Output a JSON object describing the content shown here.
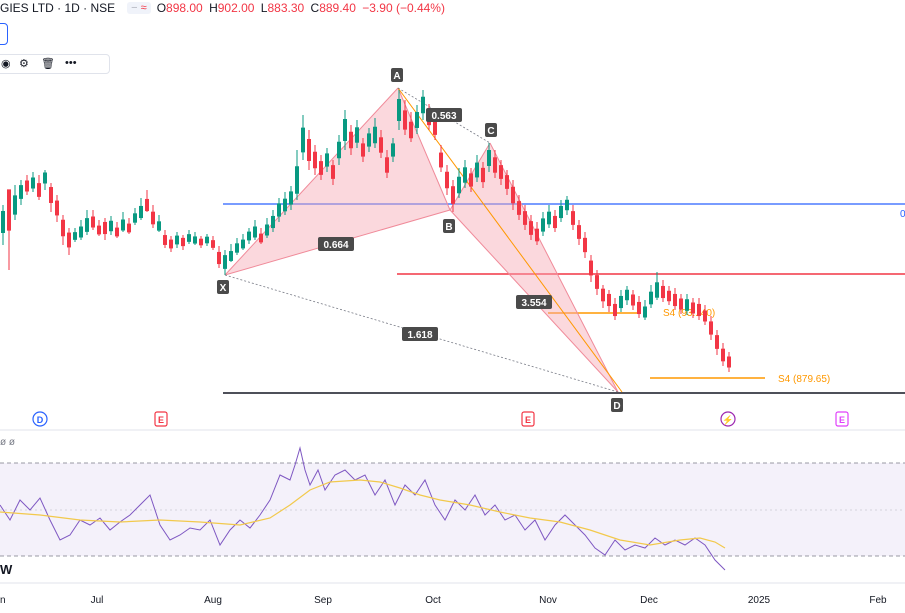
{
  "header": {
    "symbol": "GIES LTD · 1D · NSE",
    "chip_minus": "−",
    "chip_eq": "≈",
    "ohlc": [
      {
        "k": "O",
        "v": "898.00"
      },
      {
        "k": "H",
        "v": "902.00"
      },
      {
        "k": "L",
        "v": "883.30"
      },
      {
        "k": "C",
        "v": "889.40"
      },
      {
        "k": "",
        "v": "−3.90 (−0.44%)"
      }
    ]
  },
  "toolbar": {
    "eye": "◉",
    "settings": "⚙",
    "trash": "🗑",
    "more": "•••"
  },
  "indicator_header": "ø ø",
  "w_label": "W",
  "colors": {
    "up": "#089981",
    "down": "#f23645",
    "blue_line": "#2962ff",
    "red_line": "#f23645",
    "pattern_fill": "#f7a8b3",
    "rsi": "#7e57c2",
    "rsi_ma": "#f2c94c",
    "rsi_band": "#ede7f6",
    "orange": "#ff9800"
  },
  "chart_data": {
    "type": "candlestick",
    "x_ticks": [
      "n",
      "Jul",
      "Aug",
      "Sep",
      "Oct",
      "Nov",
      "Dec",
      "2025",
      "Feb"
    ],
    "pattern_points": [
      {
        "label": "X"
      },
      {
        "label": "A"
      },
      {
        "label": "B"
      },
      {
        "label": "C"
      },
      {
        "label": "D"
      }
    ],
    "ratios": [
      "0.563",
      "0.664",
      "3.554",
      "1.618"
    ],
    "levels": [
      {
        "label": "S4 (93...40)",
        "color": "#ff9800"
      },
      {
        "label": "S4 (879.65)",
        "color": "#ff9800"
      }
    ],
    "right_edge_label": "0",
    "event_markers": [
      {
        "kind": "D",
        "color": "#2962ff"
      },
      {
        "kind": "E",
        "color": "#f23645"
      },
      {
        "kind": "E",
        "color": "#f23645"
      },
      {
        "kind": "⚡",
        "color": "#9c27b0"
      },
      {
        "kind": "E",
        "color": "#e040fb"
      }
    ]
  }
}
